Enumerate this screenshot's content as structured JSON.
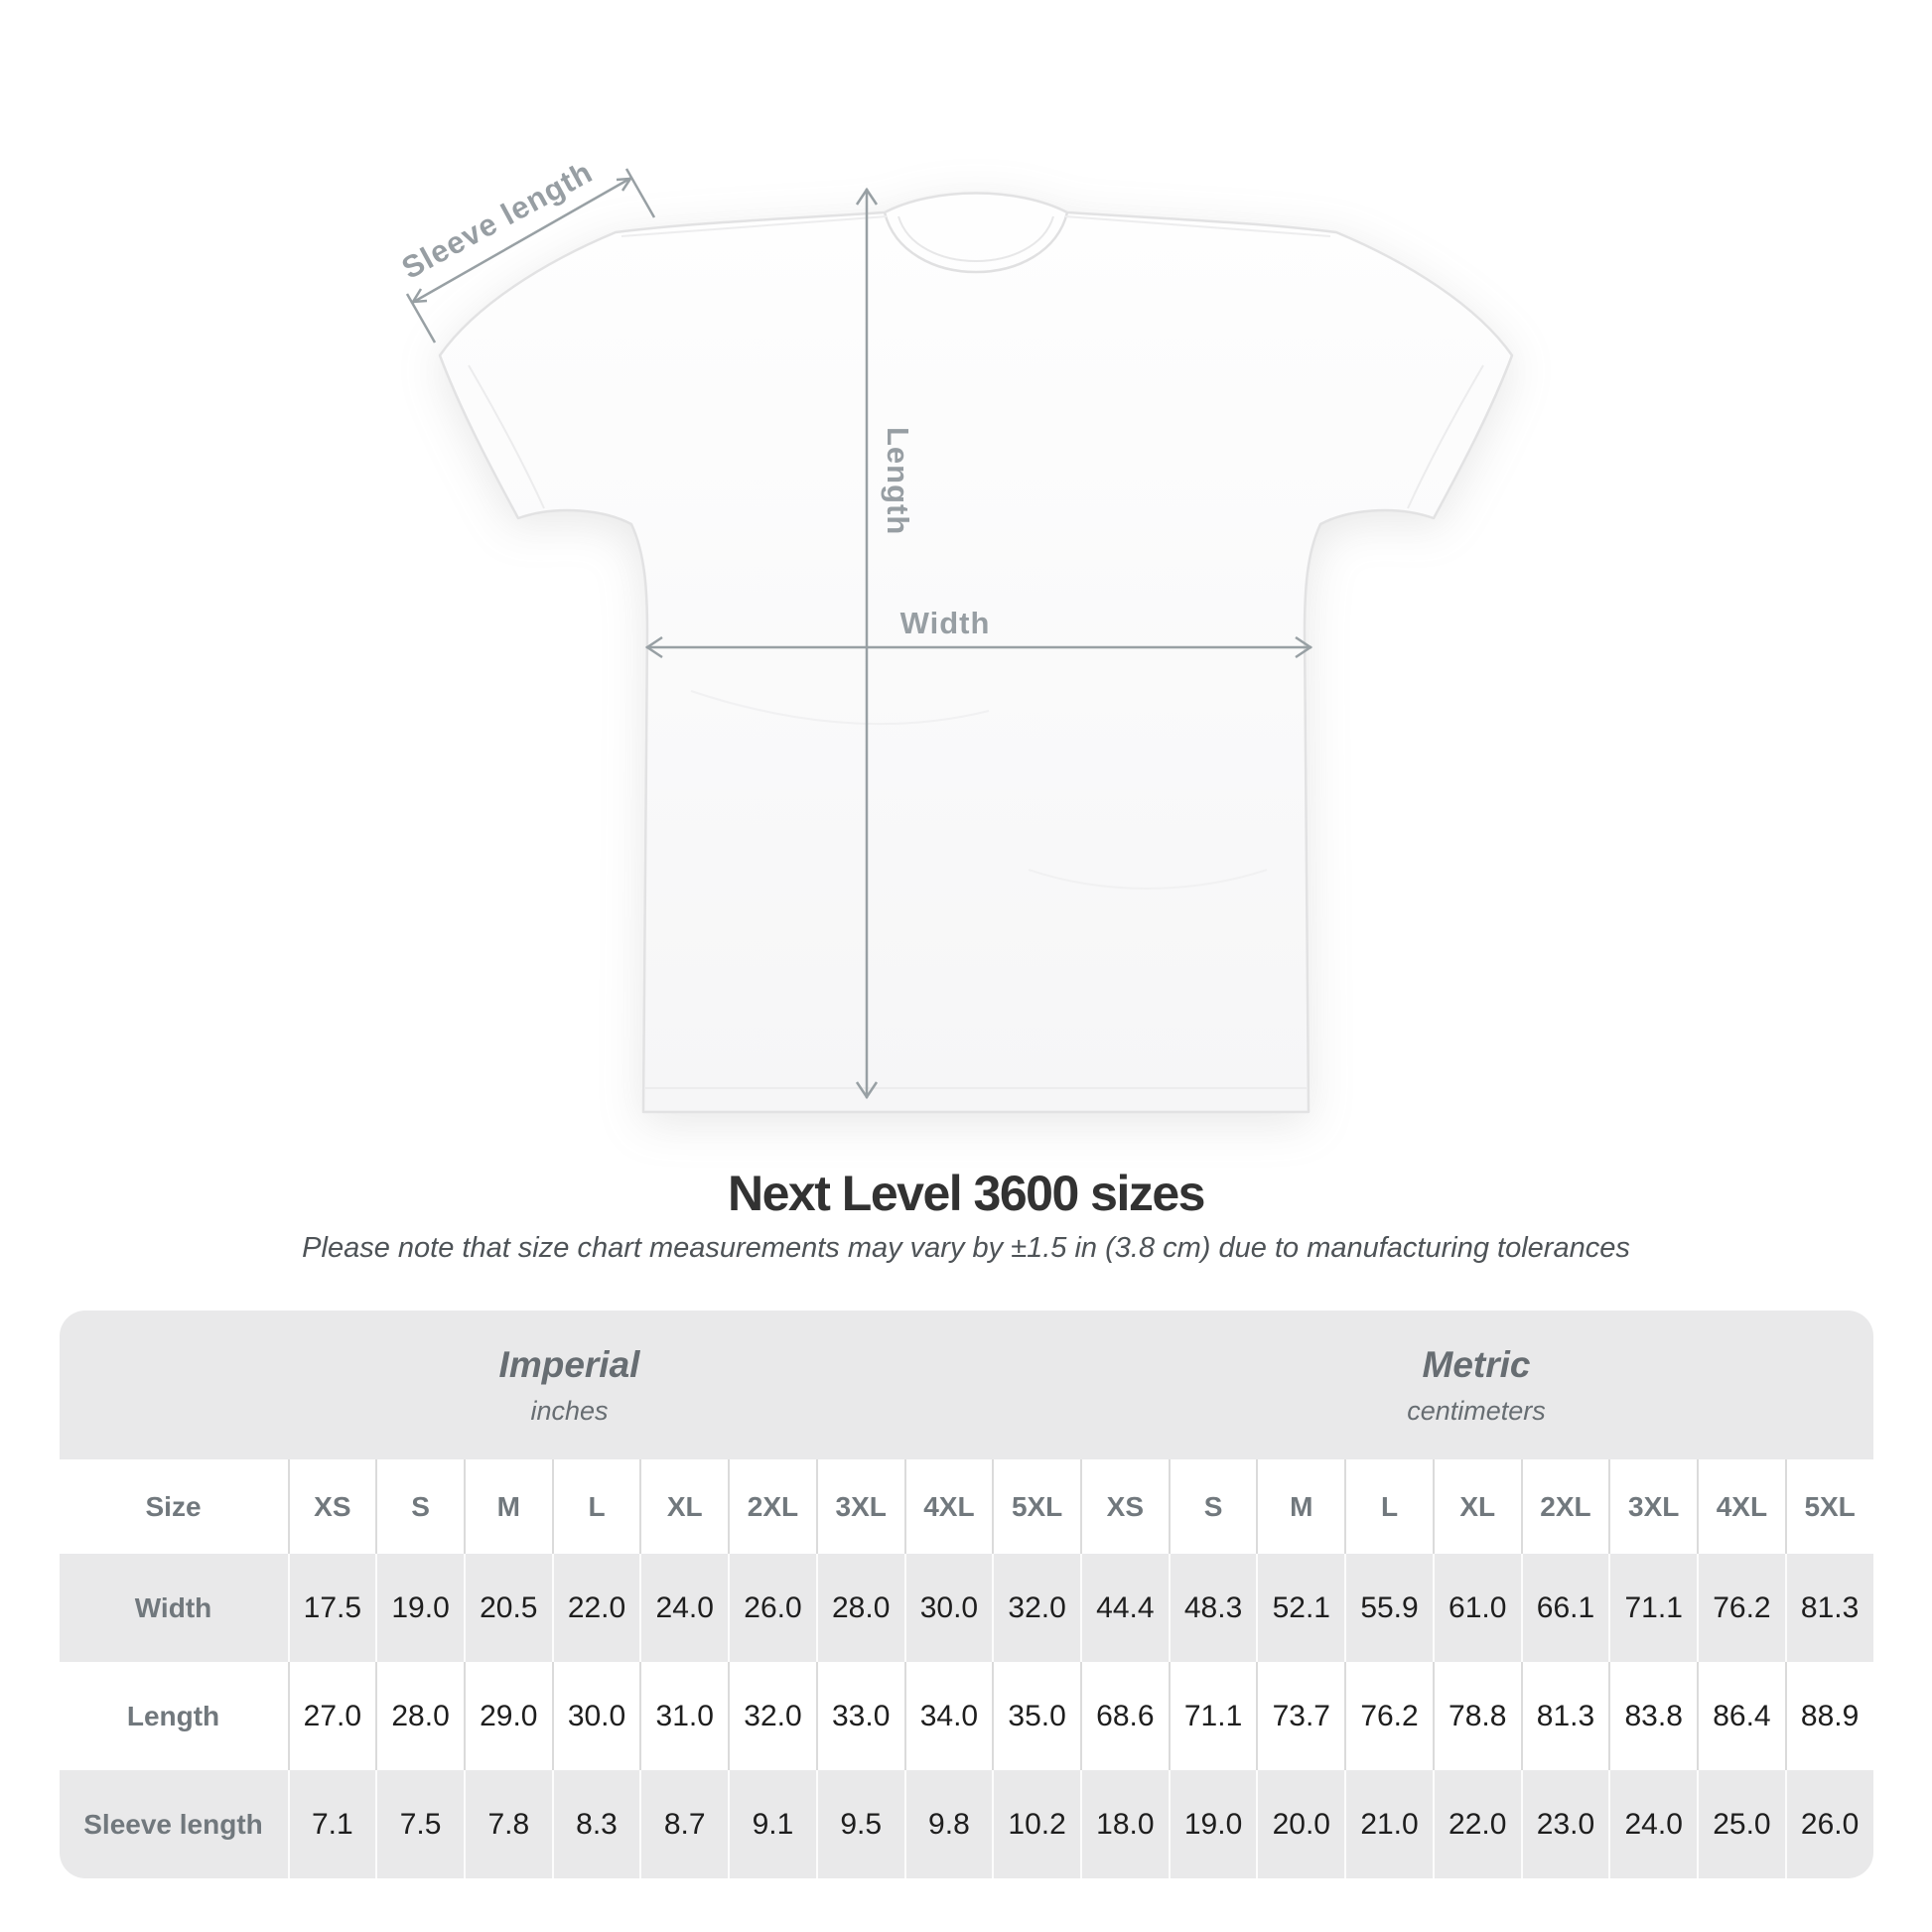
{
  "diagram": {
    "labels": {
      "sleeve_length": "Sleeve length",
      "length": "Length",
      "width": "Width"
    },
    "annotation_color": "#98a0a4"
  },
  "chart_data": {
    "type": "table",
    "title": "Next Level 3600 sizes",
    "note": "Please note that size chart measurements may vary by ±1.5 in (3.8 cm) due to manufacturing tolerances",
    "corner_label": "Size",
    "unit_groups": [
      {
        "label": "Imperial",
        "sublabel": "inches",
        "columns": 9
      },
      {
        "label": "Metric",
        "sublabel": "centimeters",
        "columns": 9
      }
    ],
    "columns": [
      "XS",
      "S",
      "M",
      "L",
      "XL",
      "2XL",
      "3XL",
      "4XL",
      "5XL",
      "XS",
      "S",
      "M",
      "L",
      "XL",
      "2XL",
      "3XL",
      "4XL",
      "5XL"
    ],
    "rows": [
      {
        "label": "Width",
        "values": [
          "17.5",
          "19.0",
          "20.5",
          "22.0",
          "24.0",
          "26.0",
          "28.0",
          "30.0",
          "32.0",
          "44.4",
          "48.3",
          "52.1",
          "55.9",
          "61.0",
          "66.1",
          "71.1",
          "76.2",
          "81.3"
        ]
      },
      {
        "label": "Length",
        "values": [
          "27.0",
          "28.0",
          "29.0",
          "30.0",
          "31.0",
          "32.0",
          "33.0",
          "34.0",
          "35.0",
          "68.6",
          "71.1",
          "73.7",
          "76.2",
          "78.8",
          "81.3",
          "83.8",
          "86.4",
          "88.9"
        ]
      },
      {
        "label": "Sleeve length",
        "values": [
          "7.1",
          "7.5",
          "7.8",
          "8.3",
          "8.7",
          "9.1",
          "9.5",
          "9.8",
          "10.2",
          "18.0",
          "19.0",
          "20.0",
          "21.0",
          "22.0",
          "23.0",
          "24.0",
          "25.0",
          "26.0"
        ]
      }
    ]
  }
}
